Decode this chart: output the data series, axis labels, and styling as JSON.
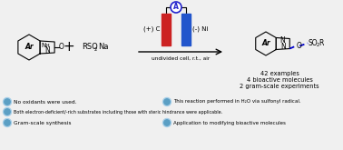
{
  "bg_color": "#f0f0f0",
  "bullet_color_outer": "#a8cfe8",
  "bullet_color_inner": "#5b9fc4",
  "bullet_texts_left": [
    "No oxidants were used.",
    "Both electron-deficient/-rich substrates including those with steric hindrance were applicable.",
    "Gram-scale synthesis"
  ],
  "bullet_texts_right": [
    "This reaction performed in H₂O via sulfonyl radical.",
    "Application to modifying bioactive molecules"
  ],
  "reaction_arrow_text": "undivided cell, r.t., air",
  "product_stats": [
    "42 examples",
    "4 bioactive molecules",
    "2 gram-scale experiments"
  ],
  "red_color": "#cc2222",
  "blue_color": "#2255cc",
  "dark_blue": "#0000cc",
  "ammeter_color": "#2222cc",
  "line_color": "#333333"
}
